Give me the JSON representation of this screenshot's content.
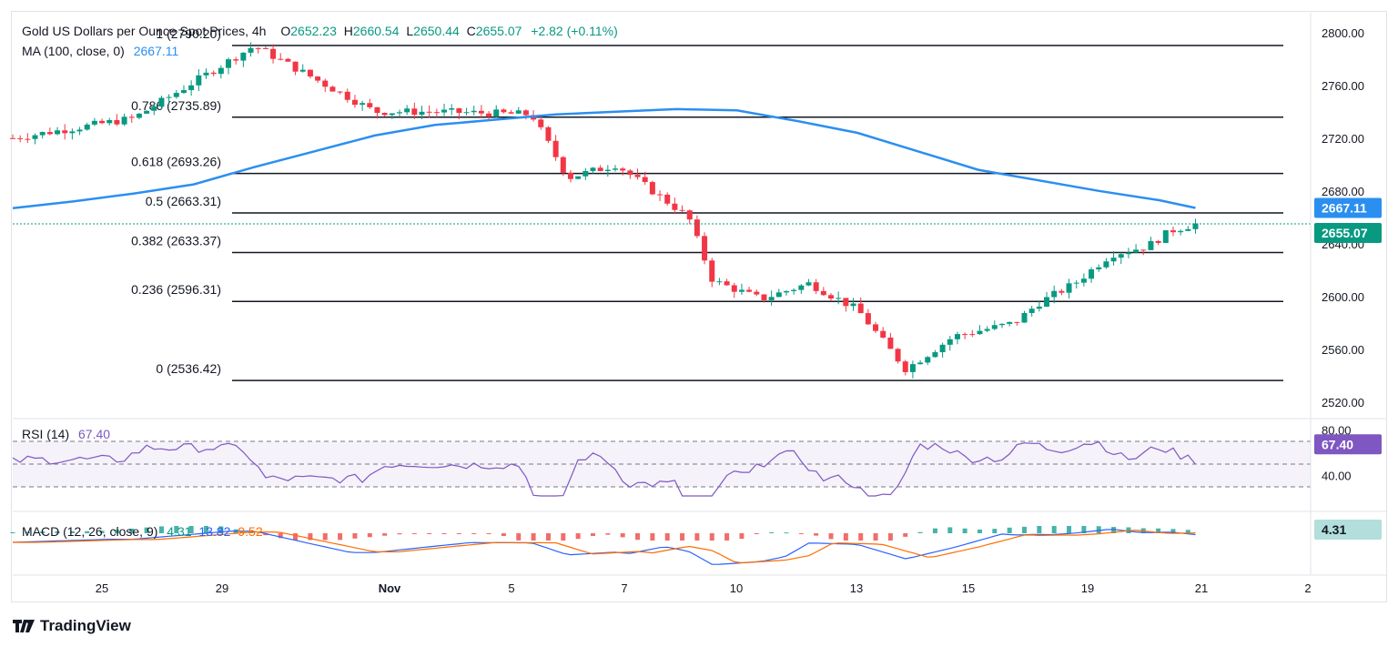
{
  "header": {
    "symbol": "Gold US Dollars per Ounce Spot Prices, 4h",
    "o_label": "O",
    "o": "2652.23",
    "h_label": "H",
    "h": "2660.54",
    "l_label": "L",
    "l": "2650.44",
    "c_label": "C",
    "c": "2655.07",
    "change": "+2.82 (+0.11%)"
  },
  "ma_legend": {
    "label": "MA (100, close, 0)",
    "value": "2667.11"
  },
  "rsi_legend": {
    "label": "RSI (14)",
    "value": "67.40"
  },
  "macd_legend": {
    "label": "MACD (12, 26, close, 9)",
    "hist": "4.31",
    "macd": "13.82",
    "signal": "9.52"
  },
  "price_tags": {
    "ma": "2667.11",
    "close": "2655.07",
    "rsi": "67.40",
    "macd_hist": "4.31"
  },
  "brand": "TradingView",
  "colors": {
    "up": "#089981",
    "down": "#f23645",
    "ma": "#2b8ff0",
    "rsi": "#7e57c2",
    "macd": "#2962ff",
    "signal": "#ff6d00"
  },
  "chart_data": {
    "type": "candlestick",
    "y_axis": {
      "ticks": [
        "2800.00",
        "2760.00",
        "2720.00",
        "2680.00",
        "2640.00",
        "2600.00",
        "2560.00",
        "2520.00"
      ],
      "ylim": [
        2511,
        2815
      ]
    },
    "x_axis": {
      "ticks": [
        "25",
        "29",
        "Nov",
        "5",
        "7",
        "10",
        "13",
        "15",
        "19",
        "21",
        "2"
      ]
    },
    "fib_levels": [
      {
        "label": "1 (2790.20)",
        "value": 2790.2
      },
      {
        "label": "0.786 (2735.89)",
        "value": 2735.89
      },
      {
        "label": "0.618 (2693.26)",
        "value": 2693.26
      },
      {
        "label": "0.5 (2663.31)",
        "value": 2663.31
      },
      {
        "label": "0.382 (2633.37)",
        "value": 2633.37
      },
      {
        "label": "0.236 (2596.31)",
        "value": 2596.31
      },
      {
        "label": "0 (2536.42)",
        "value": 2536.42
      }
    ],
    "ma_points": [
      [
        0,
        2667
      ],
      [
        0.05,
        2672
      ],
      [
        0.1,
        2678
      ],
      [
        0.15,
        2685
      ],
      [
        0.2,
        2698
      ],
      [
        0.25,
        2710
      ],
      [
        0.3,
        2722
      ],
      [
        0.35,
        2730
      ],
      [
        0.4,
        2734
      ],
      [
        0.45,
        2738
      ],
      [
        0.5,
        2740
      ],
      [
        0.55,
        2742
      ],
      [
        0.6,
        2741
      ],
      [
        0.65,
        2733
      ],
      [
        0.7,
        2724
      ],
      [
        0.75,
        2710
      ],
      [
        0.8,
        2696
      ],
      [
        0.85,
        2688
      ],
      [
        0.9,
        2680
      ],
      [
        0.95,
        2673
      ],
      [
        0.98,
        2667.11
      ]
    ],
    "close_points": [
      [
        0,
        2720
      ],
      [
        0.1,
        2735
      ],
      [
        0.2,
        2790
      ],
      [
        0.3,
        2740
      ],
      [
        0.35,
        2740
      ],
      [
        0.43,
        2738
      ],
      [
        0.46,
        2690
      ],
      [
        0.5,
        2700
      ],
      [
        0.53,
        2680
      ],
      [
        0.56,
        2660
      ],
      [
        0.58,
        2612
      ],
      [
        0.62,
        2598
      ],
      [
        0.66,
        2610
      ],
      [
        0.7,
        2590
      ],
      [
        0.74,
        2545
      ],
      [
        0.78,
        2570
      ],
      [
        0.83,
        2580
      ],
      [
        0.85,
        2595
      ],
      [
        0.88,
        2610
      ],
      [
        0.91,
        2632
      ],
      [
        0.94,
        2638
      ],
      [
        0.96,
        2650
      ],
      [
        0.98,
        2655.07
      ]
    ],
    "rsi": {
      "ticks": [
        "80.00",
        "40.00"
      ],
      "last": 67.4
    },
    "macd": {
      "ticks": [
        "4.31"
      ]
    }
  }
}
